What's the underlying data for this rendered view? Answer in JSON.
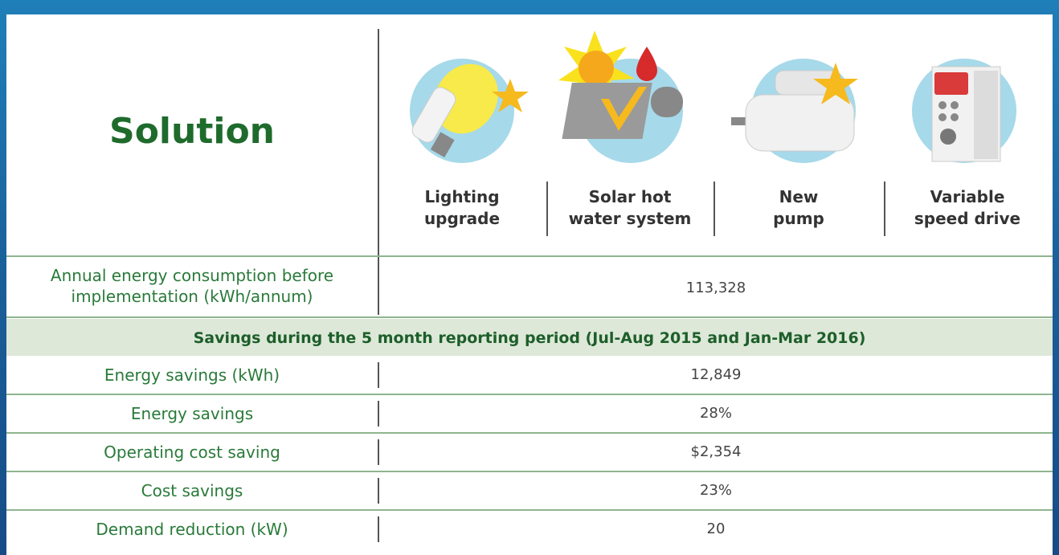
{
  "header": {
    "title": "Solution",
    "solutions": [
      {
        "label": [
          "Lighting",
          "upgrade"
        ]
      },
      {
        "label": [
          "Solar hot",
          "water system"
        ]
      },
      {
        "label": [
          "New",
          "pump"
        ]
      },
      {
        "label": [
          "Variable",
          "speed drive"
        ]
      }
    ]
  },
  "table": {
    "intro_row": [
      "Annual energy consumption before implementation (kWh/annum)",
      "113,328"
    ],
    "section_header": "Savings during the 5 month reporting period (Jul-Aug 2015 and Jan-Mar 2016)",
    "rows": [
      [
        "Energy savings (kWh)",
        "12,849"
      ],
      [
        "Energy savings",
        "28%"
      ],
      [
        "Operating cost saving",
        "$2,354"
      ],
      [
        "Cost savings",
        "23%"
      ],
      [
        "Demand reduction (kW)",
        "20"
      ]
    ]
  }
}
